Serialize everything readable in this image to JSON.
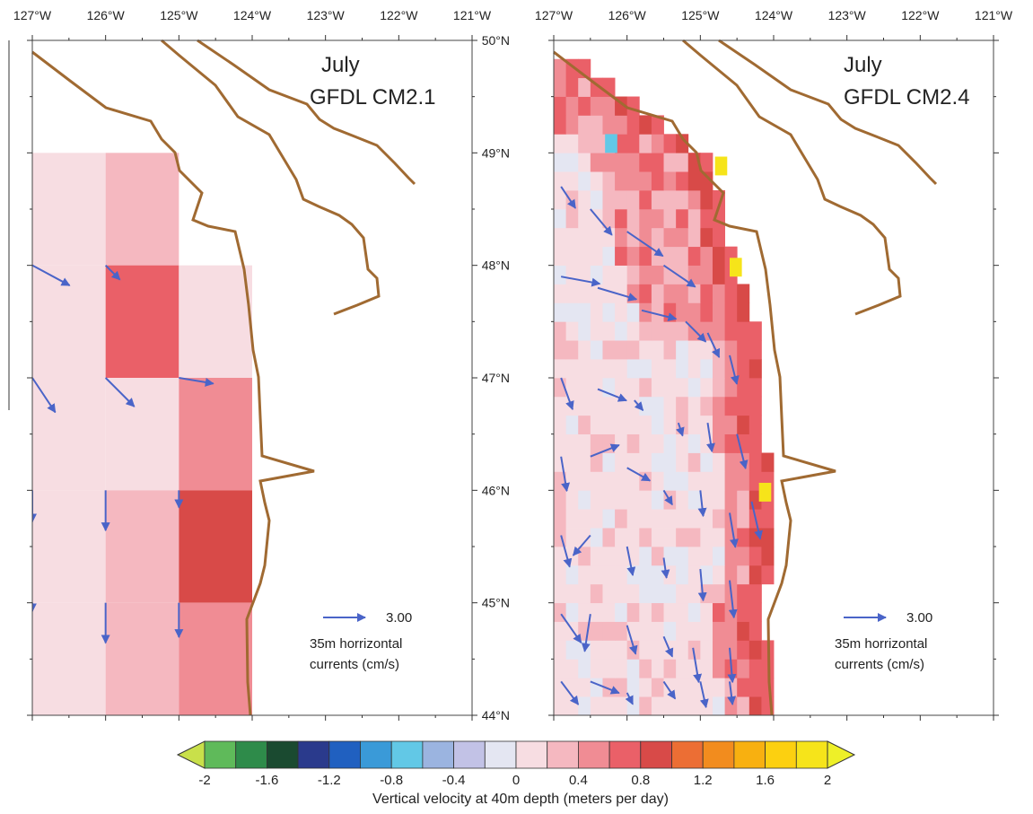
{
  "figure": {
    "lon_labels": [
      "127°W",
      "126°W",
      "125°W",
      "124°W",
      "123°W",
      "122°W",
      "121°W"
    ],
    "lat_labels": [
      "50°N",
      "49°N",
      "48°N",
      "47°N",
      "46°N",
      "45°N",
      "44°N"
    ],
    "panels": [
      {
        "month": "July",
        "model": "GFDL CM2.1",
        "reference_vector": {
          "value": "3.00",
          "line1": "35m horrizontal",
          "line2": "currents (cm/s)"
        }
      },
      {
        "month": "July",
        "model": "GFDL CM2.4",
        "reference_vector": {
          "value": "3.00",
          "line1": "35m horrizontal",
          "line2": "currents (cm/s)"
        }
      }
    ],
    "colorbar": {
      "title": "Vertical velocity at 40m depth (meters per day)",
      "tick_labels": [
        "-2",
        "-1.6",
        "-1.2",
        "-0.8",
        "-0.4",
        "0",
        "0.4",
        "0.8",
        "1.2",
        "1.6",
        "2"
      ],
      "colors": [
        "#c9e04a",
        "#5fba5a",
        "#2e8b4a",
        "#1a4a30",
        "#2a3a8c",
        "#2060c0",
        "#3a9ad8",
        "#62c8e6",
        "#9bb4e0",
        "#c2c2e6",
        "#e4e6f2",
        "#f7dde2",
        "#f5b8c0",
        "#f08c94",
        "#ea6068",
        "#d84a48",
        "#ec6e34",
        "#f28c1e",
        "#f8b010",
        "#fcd010",
        "#f6e41a",
        "#eef028"
      ],
      "bounds": [
        -2.0,
        2.0
      ],
      "step": 0.2
    },
    "colors": {
      "coast": "#a06a32",
      "vector": "#4a64c8",
      "frame": "#333333"
    }
  },
  "chart_data": [
    {
      "type": "heatmap",
      "title": "July GFDL CM2.1",
      "xlabel": "",
      "ylabel": "",
      "x_range": [
        -127,
        -121
      ],
      "y_range": [
        44,
        50
      ],
      "cell_size_deg": [
        1.0,
        1.0
      ],
      "cells": [
        {
          "lon": -127,
          "lat": 48,
          "value": 0.1
        },
        {
          "lon": -126,
          "lat": 48,
          "value": 0.3
        },
        {
          "lon": -127,
          "lat": 47,
          "value": 0.1
        },
        {
          "lon": -126,
          "lat": 47,
          "value": 0.6
        },
        {
          "lon": -125,
          "lat": 47,
          "value": 0.15
        },
        {
          "lon": -127,
          "lat": 46,
          "value": 0.1
        },
        {
          "lon": -126,
          "lat": 46,
          "value": 0.1
        },
        {
          "lon": -125,
          "lat": 46,
          "value": 0.55
        },
        {
          "lon": -127,
          "lat": 45,
          "value": 0.1
        },
        {
          "lon": -126,
          "lat": 45,
          "value": 0.35
        },
        {
          "lon": -125,
          "lat": 45,
          "value": 0.9
        },
        {
          "lon": -127,
          "lat": 44,
          "value": 0.1
        },
        {
          "lon": -126,
          "lat": 44,
          "value": 0.35
        },
        {
          "lon": -125,
          "lat": 44,
          "value": 0.55
        }
      ],
      "vectors": [
        {
          "lon": -127.0,
          "lat": 48.0,
          "u": 2.6,
          "v": -1.4
        },
        {
          "lon": -126.0,
          "lat": 48.0,
          "u": 1.0,
          "v": -1.0
        },
        {
          "lon": -127.0,
          "lat": 47.0,
          "u": 1.6,
          "v": -2.4
        },
        {
          "lon": -126.0,
          "lat": 47.0,
          "u": 2.0,
          "v": -2.0
        },
        {
          "lon": -125.0,
          "lat": 47.0,
          "u": 2.4,
          "v": -0.4
        },
        {
          "lon": -127.0,
          "lat": 46.0,
          "u": 0.0,
          "v": -2.2
        },
        {
          "lon": -126.0,
          "lat": 46.0,
          "u": 0.0,
          "v": -2.8
        },
        {
          "lon": -125.0,
          "lat": 46.0,
          "u": 0.0,
          "v": -1.2
        },
        {
          "lon": -127.0,
          "lat": 45.0,
          "u": 0.0,
          "v": -0.6
        },
        {
          "lon": -126.0,
          "lat": 45.0,
          "u": 0.0,
          "v": -2.8
        },
        {
          "lon": -125.0,
          "lat": 45.0,
          "u": 0.0,
          "v": -2.4
        }
      ]
    },
    {
      "type": "heatmap",
      "title": "July GFDL CM2.4",
      "xlabel": "",
      "ylabel": "",
      "x_range": [
        -127,
        -121
      ],
      "y_range": [
        44,
        50
      ],
      "cell_size_deg": [
        0.1667,
        0.1667
      ],
      "coastal_band_values": {
        "nearshore": [
          0.6,
          1.0
        ],
        "hotspots": [
          {
            "lon": -126.3,
            "lat": 49.0,
            "value": -0.8
          },
          {
            "lon": -124.8,
            "lat": 48.8,
            "value": 1.8
          },
          {
            "lon": -124.6,
            "lat": 47.9,
            "value": 1.9
          },
          {
            "lon": -124.2,
            "lat": 45.9,
            "value": 1.9
          }
        ]
      },
      "offshore_value": 0.0,
      "vectors": [
        {
          "lon": -126.9,
          "lat": 48.7,
          "u": 1.0,
          "v": -1.5
        },
        {
          "lon": -126.5,
          "lat": 48.5,
          "u": 1.5,
          "v": -1.8
        },
        {
          "lon": -126.0,
          "lat": 48.3,
          "u": 2.5,
          "v": -1.7
        },
        {
          "lon": -125.5,
          "lat": 48.0,
          "u": 2.2,
          "v": -1.5
        },
        {
          "lon": -126.9,
          "lat": 47.9,
          "u": 2.7,
          "v": -0.5
        },
        {
          "lon": -126.4,
          "lat": 47.8,
          "u": 2.7,
          "v": -0.8
        },
        {
          "lon": -125.8,
          "lat": 47.6,
          "u": 2.4,
          "v": -0.6
        },
        {
          "lon": -125.2,
          "lat": 47.5,
          "u": 1.4,
          "v": -1.4
        },
        {
          "lon": -124.9,
          "lat": 47.4,
          "u": 0.8,
          "v": -1.7
        },
        {
          "lon": -124.6,
          "lat": 47.2,
          "u": 0.5,
          "v": -2.0
        },
        {
          "lon": -126.9,
          "lat": 47.0,
          "u": 0.8,
          "v": -2.2
        },
        {
          "lon": -126.4,
          "lat": 46.9,
          "u": 2.0,
          "v": -0.8
        },
        {
          "lon": -125.9,
          "lat": 46.8,
          "u": 0.6,
          "v": -0.7
        },
        {
          "lon": -125.3,
          "lat": 46.6,
          "u": 0.3,
          "v": -0.9
        },
        {
          "lon": -124.9,
          "lat": 46.6,
          "u": 0.3,
          "v": -2.0
        },
        {
          "lon": -124.5,
          "lat": 46.5,
          "u": 0.6,
          "v": -2.4
        },
        {
          "lon": -126.9,
          "lat": 46.3,
          "u": 0.4,
          "v": -2.4
        },
        {
          "lon": -126.5,
          "lat": 46.3,
          "u": 2.0,
          "v": 0.8
        },
        {
          "lon": -126.0,
          "lat": 46.2,
          "u": 1.6,
          "v": -0.9
        },
        {
          "lon": -125.5,
          "lat": 46.0,
          "u": 0.6,
          "v": -1.0
        },
        {
          "lon": -125.0,
          "lat": 46.0,
          "u": 0.2,
          "v": -1.8
        },
        {
          "lon": -124.6,
          "lat": 45.8,
          "u": 0.4,
          "v": -2.4
        },
        {
          "lon": -124.3,
          "lat": 45.9,
          "u": 0.6,
          "v": -2.6
        },
        {
          "lon": -126.9,
          "lat": 45.6,
          "u": 0.6,
          "v": -2.2
        },
        {
          "lon": -126.5,
          "lat": 45.6,
          "u": -1.2,
          "v": -1.4
        },
        {
          "lon": -126.0,
          "lat": 45.5,
          "u": 0.4,
          "v": -2.0
        },
        {
          "lon": -125.5,
          "lat": 45.4,
          "u": 0.2,
          "v": -1.4
        },
        {
          "lon": -125.0,
          "lat": 45.3,
          "u": 0.2,
          "v": -2.2
        },
        {
          "lon": -124.6,
          "lat": 45.2,
          "u": 0.3,
          "v": -2.6
        },
        {
          "lon": -126.9,
          "lat": 44.9,
          "u": 1.4,
          "v": -2.0
        },
        {
          "lon": -126.5,
          "lat": 44.9,
          "u": -0.4,
          "v": -2.6
        },
        {
          "lon": -126.0,
          "lat": 44.8,
          "u": 0.6,
          "v": -2.0
        },
        {
          "lon": -125.5,
          "lat": 44.7,
          "u": 0.6,
          "v": -1.4
        },
        {
          "lon": -125.1,
          "lat": 44.6,
          "u": 0.4,
          "v": -2.4
        },
        {
          "lon": -124.6,
          "lat": 44.6,
          "u": 0.2,
          "v": -2.4
        },
        {
          "lon": -126.9,
          "lat": 44.3,
          "u": 1.2,
          "v": -1.6
        },
        {
          "lon": -126.5,
          "lat": 44.3,
          "u": 2.0,
          "v": -0.8
        },
        {
          "lon": -126.0,
          "lat": 44.2,
          "u": 0.4,
          "v": -0.8
        },
        {
          "lon": -125.5,
          "lat": 44.3,
          "u": 0.8,
          "v": -1.2
        },
        {
          "lon": -125.0,
          "lat": 44.3,
          "u": 0.4,
          "v": -1.8
        },
        {
          "lon": -124.6,
          "lat": 44.3,
          "u": 0.2,
          "v": -1.6
        }
      ]
    }
  ]
}
